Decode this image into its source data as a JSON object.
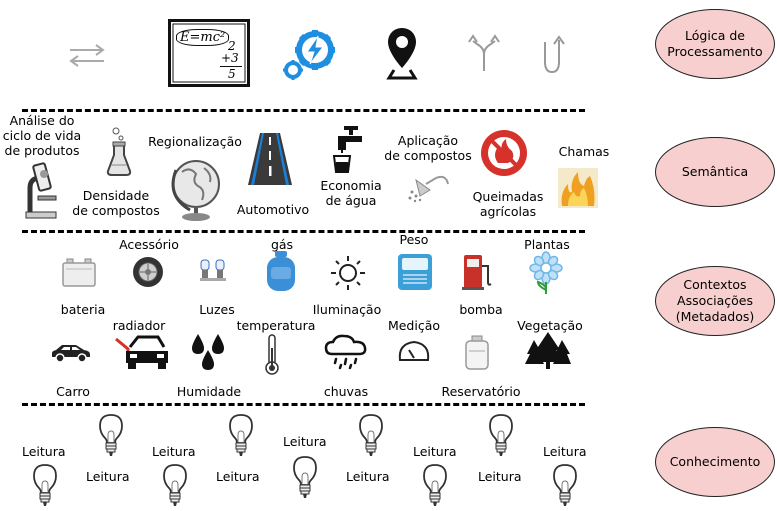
{
  "layers": [
    {
      "name": "Lógica de\nProcessamento"
    },
    {
      "name": "Semântica"
    },
    {
      "name": "Contextos\nAssociações\n(Metadados)"
    },
    {
      "name": "Conhecimento"
    }
  ],
  "processing": {
    "icons": [
      "swap-arrows-icon",
      "chalkboard-icon",
      "gear-lightning-icon",
      "location-pin-icon",
      "split-arrow-icon",
      "u-turn-arrow-icon"
    ],
    "board_text": "E=mc²",
    "board_sum": [
      "2",
      "+3",
      "5"
    ]
  },
  "semantic": {
    "labels": {
      "analise": "Análise do\nciclo de vida\nde produtos",
      "densidade": "Densidade\nde compostos",
      "regionalizacao": "Regionalização",
      "automotivo": "Automotivo",
      "economia": "Economia\nde água",
      "aplicacao": "Aplicação\nde compostos",
      "queimadas": "Queimadas\nagrícolas",
      "chamas": "Chamas"
    },
    "icons": [
      "microscope-icon",
      "flask-icon",
      "globe-icon",
      "road-icon",
      "faucet-icon",
      "shower-icon",
      "no-fire-icon",
      "flames-icon"
    ]
  },
  "context": {
    "labels": {
      "acessorio": "Acessório",
      "gas": "gás",
      "peso": "Peso",
      "plantas": "Plantas",
      "bateria": "bateria",
      "luzes": "Luzes",
      "iluminacao": "Iluminação",
      "bomba": "bomba",
      "radiador": "radiador",
      "temperatura": "temperatura",
      "medicao": "Medição",
      "vegetacao": "Vegetação",
      "carro": "Carro",
      "humidade": "Humidade",
      "chuvas": "chuvas",
      "reservatorio": "Reservatório"
    },
    "icons": [
      "battery-icon",
      "tire-icon",
      "headlight-bulbs-icon",
      "gas-cylinder-icon",
      "sun-icon",
      "scale-icon",
      "fuel-pump-icon",
      "flower-icon",
      "car-icon",
      "car-hood-icon",
      "water-drops-icon",
      "thermometer-icon",
      "rain-cloud-icon",
      "gauge-icon",
      "reservoir-icon",
      "pine-trees-icon"
    ]
  },
  "knowledge": {
    "reading_label": "Leitura",
    "icons": [
      "lightbulb-icon"
    ]
  },
  "colors": {
    "ellipse_fill": "#f7cfcf",
    "gear_blue": "#1e8fe0",
    "fire_red": "#d6312a",
    "gas_blue": "#3b8fd6",
    "scale_blue": "#3b9fd8",
    "pump_red": "#c8312a",
    "flower_blue": "#6fb7e9",
    "flower_green": "#2f9e3a",
    "flame_orange": "#f0a020"
  }
}
